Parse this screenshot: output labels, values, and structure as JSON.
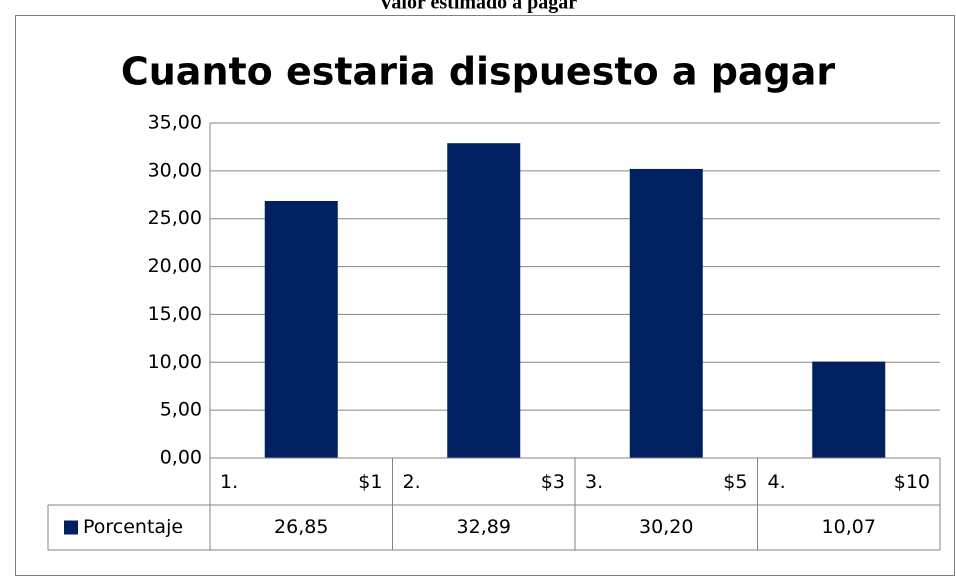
{
  "heading": "Valor estimado a pagar",
  "chart_data": {
    "type": "bar",
    "title": "Cuanto estaria dispuesto a pagar",
    "categories": [
      "1. $1",
      "2. $3",
      "3. $5",
      "4. $10"
    ],
    "series": [
      {
        "name": "Porcentaje",
        "color": "#002060",
        "values": [
          26.85,
          32.89,
          30.2,
          10.07
        ],
        "value_labels": [
          "26,85",
          "32,89",
          "30,20",
          "10,07"
        ]
      }
    ],
    "ylim": [
      0,
      35
    ],
    "yticks": [
      {
        "value": 0,
        "label": "0,00"
      },
      {
        "value": 5,
        "label": "5,00"
      },
      {
        "value": 10,
        "label": "10,00"
      },
      {
        "value": 15,
        "label": "15,00"
      },
      {
        "value": 20,
        "label": "20,00"
      },
      {
        "value": 25,
        "label": "25,00"
      },
      {
        "value": 30,
        "label": "30,00"
      },
      {
        "value": 35,
        "label": "35,00"
      }
    ],
    "grid": true,
    "data_table": true
  }
}
